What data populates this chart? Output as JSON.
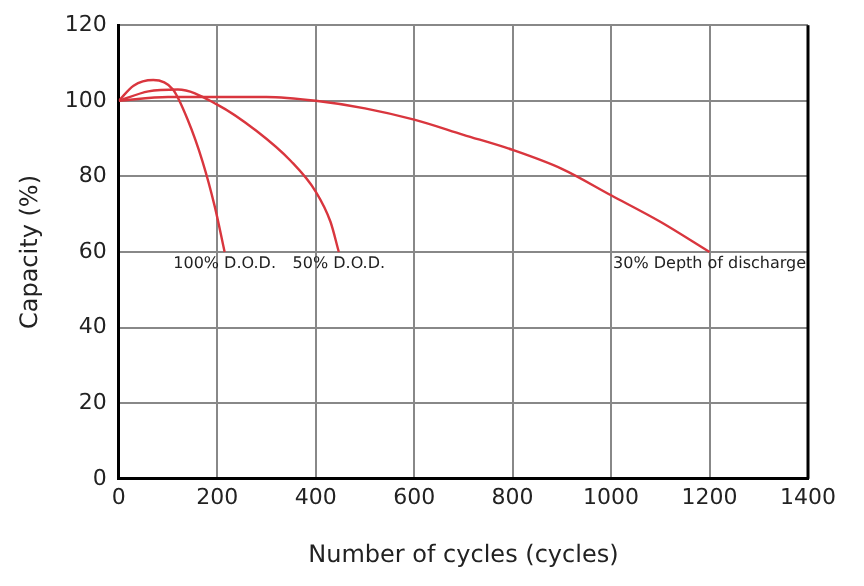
{
  "chart_data": {
    "type": "line",
    "xlabel": "Number of cycles (cycles)",
    "ylabel": "Capacity (%)",
    "xlim": [
      0,
      1400
    ],
    "ylim": [
      0,
      120
    ],
    "xticks": [
      0,
      200,
      400,
      600,
      800,
      1000,
      1200,
      1400
    ],
    "yticks": [
      0,
      20,
      40,
      60,
      80,
      100,
      120
    ],
    "grid": true,
    "legend": false,
    "marker": "none",
    "line_style": "solid",
    "series": [
      {
        "color": "#d9363e",
        "x": [
          0,
          30,
          70,
          110,
          140,
          170,
          195,
          215
        ],
        "values": [
          100,
          104,
          105.5,
          103,
          95,
          84,
          72,
          60
        ]
      },
      {
        "color": "#d9363e",
        "x": [
          0,
          60,
          120,
          200,
          280,
          350,
          400,
          430,
          447
        ],
        "values": [
          100,
          102.5,
          103,
          99,
          92,
          84,
          76,
          68,
          60
        ]
      },
      {
        "color": "#d9363e",
        "x": [
          0,
          100,
          200,
          300,
          400,
          500,
          600,
          700,
          800,
          900,
          1000,
          1100,
          1200
        ],
        "values": [
          100,
          101,
          101,
          101,
          100,
          98,
          95,
          91,
          87,
          82,
          75,
          68,
          60
        ]
      }
    ],
    "annotations": [
      {
        "text": "100% D.O.D.",
        "x": 215,
        "y": 60
      },
      {
        "text": "50% D.O.D.",
        "x": 447,
        "y": 60
      },
      {
        "text": "30% Depth of discharge",
        "x": 1200,
        "y": 60
      }
    ]
  }
}
